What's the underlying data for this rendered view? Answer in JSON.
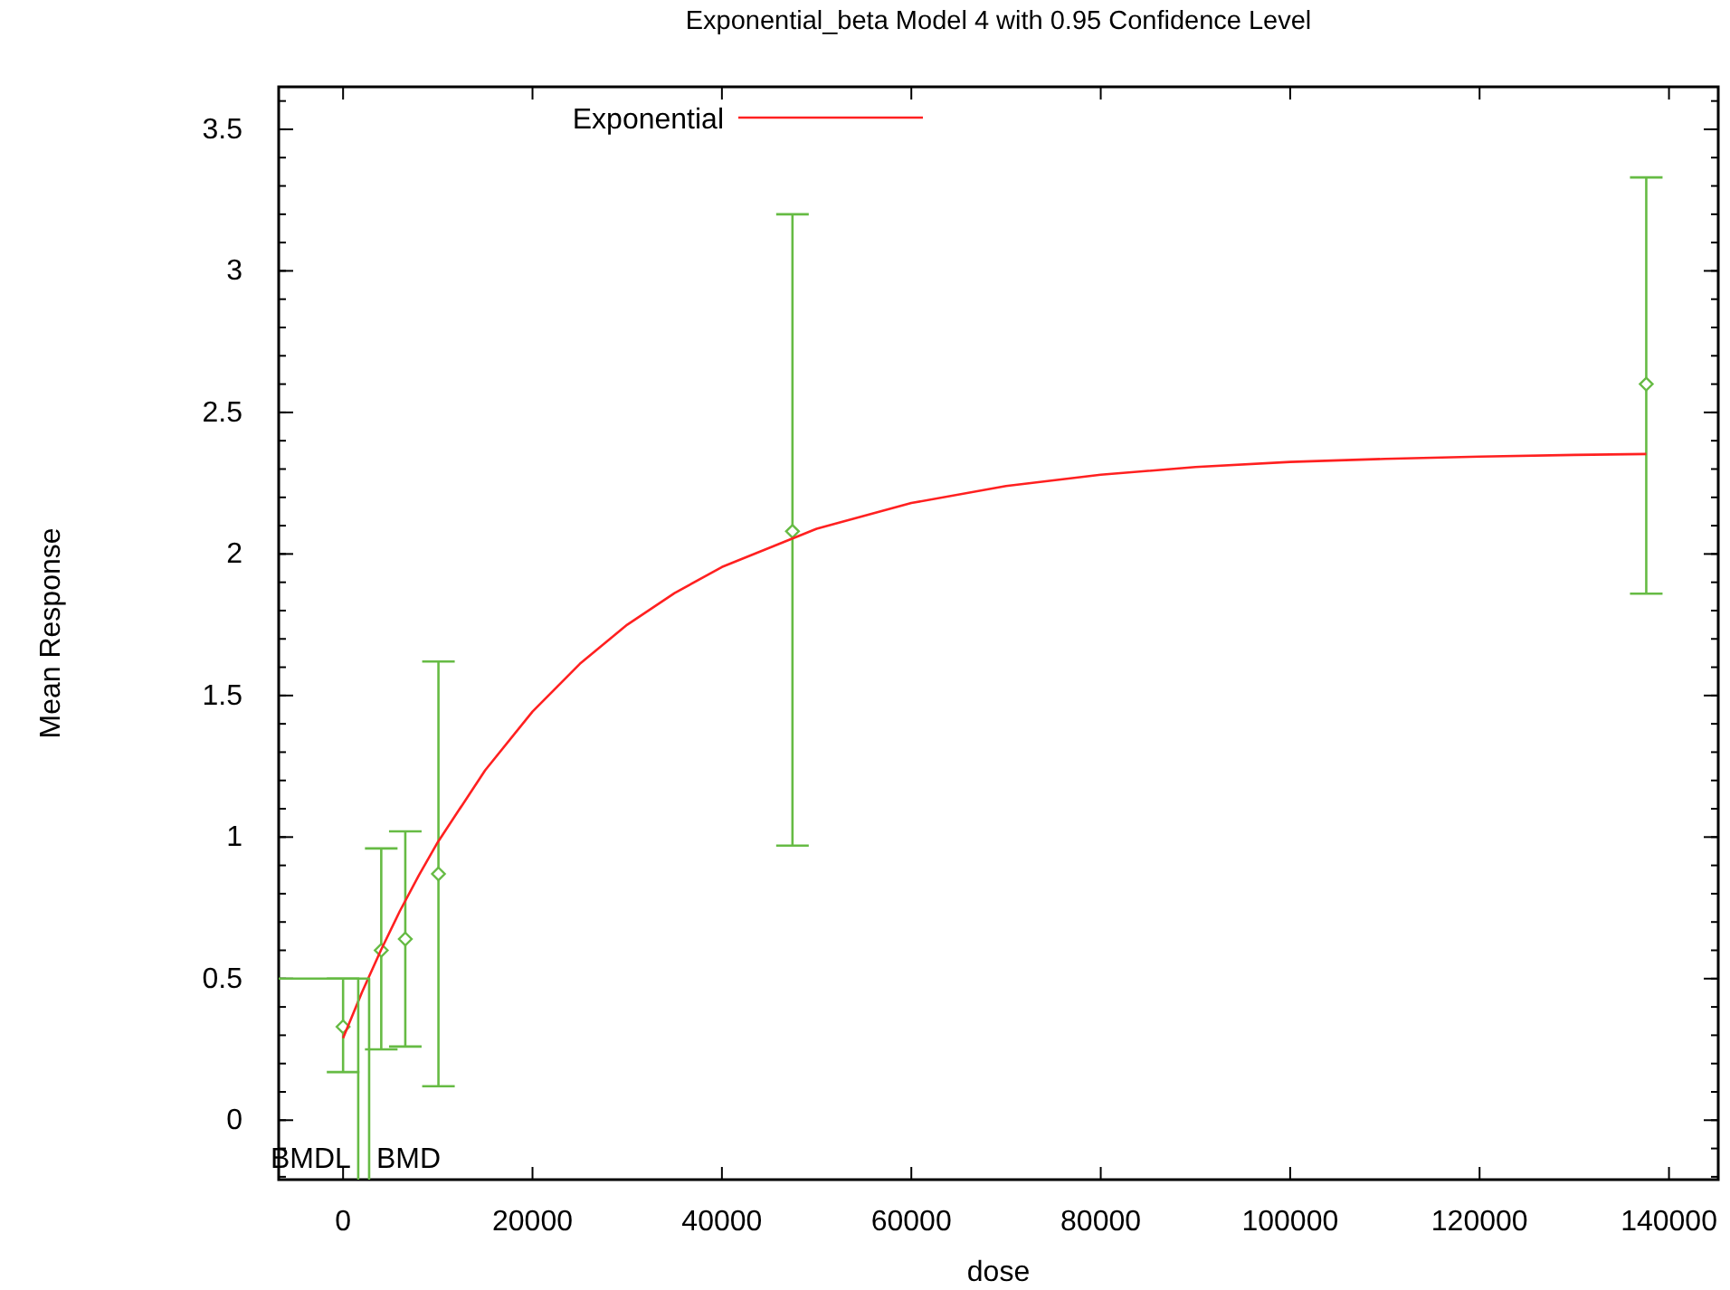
{
  "chart_data": {
    "type": "scatter",
    "title": "Exponential_beta Model 4 with 0.95 Confidence Level",
    "xlabel": "dose",
    "ylabel": "Mean Response",
    "xlim": [
      -6800,
      145200
    ],
    "ylim": [
      -0.21,
      3.65
    ],
    "xticks": [
      0,
      20000,
      40000,
      60000,
      80000,
      100000,
      120000,
      140000
    ],
    "yticks": [
      0,
      0.5,
      1,
      1.5,
      2,
      2.5,
      3,
      3.5
    ],
    "grid": false,
    "legend": "top",
    "series": [
      {
        "color": "#66bb44",
        "marker": "diamond",
        "x": [
          0,
          4030,
          6570,
          10070,
          47450,
          137600
        ],
        "values": [
          0.33,
          0.6,
          0.64,
          0.87,
          2.08,
          2.6
        ],
        "errors": [
          [
            0.17,
            0.5
          ],
          [
            0.25,
            0.96
          ],
          [
            0.26,
            1.02
          ],
          [
            0.12,
            1.62
          ],
          [
            0.97,
            3.2
          ],
          [
            1.86,
            3.33
          ]
        ]
      },
      {
        "type": "line",
        "name": "Exponential",
        "color": "#ff2020",
        "marker": "none",
        "x": [
          0,
          2000,
          4000,
          6000,
          8000,
          10000,
          15000,
          20000,
          25000,
          30000,
          35000,
          40000,
          50000,
          60000,
          70000,
          80000,
          90000,
          100000,
          110000,
          120000,
          130000,
          137600
        ],
        "values": [
          0.29,
          0.452,
          0.601,
          0.739,
          0.865,
          0.982,
          1.236,
          1.443,
          1.612,
          1.75,
          1.862,
          1.954,
          2.089,
          2.18,
          2.24,
          2.28,
          2.307,
          2.325,
          2.336,
          2.344,
          2.35,
          2.353
        ]
      },
      {
        "type": "line",
        "color": "#66bb44",
        "marker": "none",
        "x": [
          -6800,
          2750,
          2750
        ],
        "values": [
          0.5,
          0.5,
          -0.21
        ]
      },
      {
        "type": "line",
        "color": "#66bb44",
        "marker": "none",
        "x": [
          1600,
          1600
        ],
        "values": [
          0.5,
          -0.21
        ]
      }
    ],
    "annotations": [
      {
        "text": "BMDL",
        "x": 1600,
        "y": -0.13
      },
      {
        "text": "BMD",
        "x": 2750,
        "y": -0.13
      }
    ]
  }
}
